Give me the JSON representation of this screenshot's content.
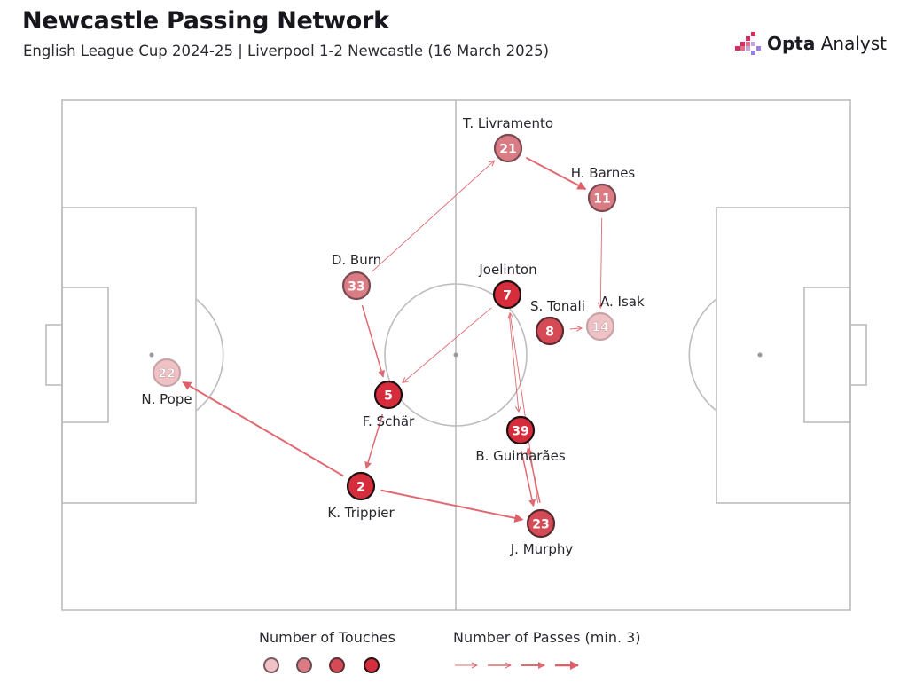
{
  "header": {
    "title": "Newcastle Passing Network",
    "subtitle": "English League Cup 2024-25 | Liverpool 1-2 Newcastle (16 March 2025)"
  },
  "brand": {
    "name_bold": "Opta",
    "name_regular": "Analyst",
    "icon": "opta-bars-icon"
  },
  "legend": {
    "touches_label": "Number of Touches",
    "passes_label": "Number of Passes (min. 3)"
  },
  "colors": {
    "pitch_lines": "#bdbdbd",
    "node_light": "#efc3c6",
    "node_mid": "#d97c84",
    "node_strong": "#d44a55",
    "node_max": "#d62d3c",
    "arrow": "#e06a72"
  },
  "players": [
    {
      "id": "pope",
      "number": "22",
      "name": "N. Pope",
      "level": 1
    },
    {
      "id": "trippier",
      "number": "2",
      "name": "K. Trippier",
      "level": 4
    },
    {
      "id": "schar",
      "number": "5",
      "name": "F. Schär",
      "level": 4
    },
    {
      "id": "burn",
      "number": "33",
      "name": "D. Burn",
      "level": 2
    },
    {
      "id": "livramento",
      "number": "21",
      "name": "T. Livramento",
      "level": 2
    },
    {
      "id": "barnes",
      "number": "11",
      "name": "H. Barnes",
      "level": 2
    },
    {
      "id": "joelinton",
      "number": "7",
      "name": "Joelinton",
      "level": 4
    },
    {
      "id": "tonali",
      "number": "8",
      "name": "S. Tonali",
      "level": 3
    },
    {
      "id": "isak",
      "number": "14",
      "name": "A. Isak",
      "level": 1
    },
    {
      "id": "guimaraes",
      "number": "39",
      "name": "B. Guimarães",
      "level": 4
    },
    {
      "id": "murphy",
      "number": "23",
      "name": "J. Murphy",
      "level": 3
    }
  ],
  "passes": [
    {
      "from": "trippier",
      "to": "pope",
      "strength": 3
    },
    {
      "from": "trippier",
      "to": "murphy",
      "strength": 3
    },
    {
      "from": "schar",
      "to": "trippier",
      "strength": 2
    },
    {
      "from": "burn",
      "to": "schar",
      "strength": 2
    },
    {
      "from": "burn",
      "to": "livramento",
      "strength": 1
    },
    {
      "from": "livramento",
      "to": "barnes",
      "strength": 3
    },
    {
      "from": "barnes",
      "to": "isak",
      "strength": 1
    },
    {
      "from": "joelinton",
      "to": "schar",
      "strength": 1
    },
    {
      "from": "joelinton",
      "to": "guimaraes",
      "strength": 1
    },
    {
      "from": "murphy",
      "to": "joelinton",
      "strength": 1
    },
    {
      "from": "guimaraes",
      "to": "murphy",
      "strength": 2
    },
    {
      "from": "murphy",
      "to": "guimaraes",
      "strength": 2
    },
    {
      "from": "tonali",
      "to": "isak",
      "strength": 1
    }
  ]
}
